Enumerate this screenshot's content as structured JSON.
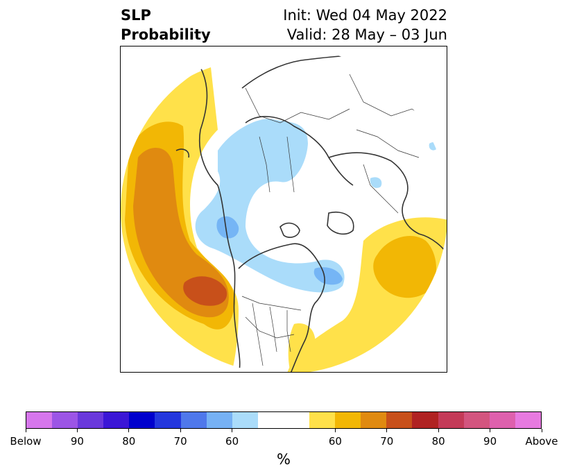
{
  "title": {
    "left_line1": "SLP",
    "left_line2": "Probability",
    "right_line1": "Init: Wed 04 May 2022",
    "right_line2": "Valid: 28 May – 03 Jun"
  },
  "map": {
    "projection": "north-polar stereographic",
    "region": "Northern Hemisphere",
    "colors": {
      "below_60": "#aadcfa",
      "below_70": "#75b5f5",
      "above_60": "#ffe14a",
      "above_70": "#f2b705",
      "above_80": "#e08a10",
      "above_90": "#c8501a",
      "coast": "#333333"
    }
  },
  "colorbar": {
    "unit_label": "%",
    "colors": [
      "#d676ec",
      "#9c55e6",
      "#6a38dc",
      "#3b16d6",
      "#0000cd",
      "#2437de",
      "#4f78eb",
      "#76b1f4",
      "#aadcfa",
      "#ffffff",
      "#ffffff",
      "#ffe14a",
      "#f2b705",
      "#e08a10",
      "#c8501a",
      "#b02222",
      "#c43a58",
      "#d3557f",
      "#de60ad",
      "#e77ae0"
    ],
    "tick_labels": [
      "Below",
      "90",
      "80",
      "70",
      "60",
      "60",
      "70",
      "80",
      "90",
      "Above"
    ]
  }
}
